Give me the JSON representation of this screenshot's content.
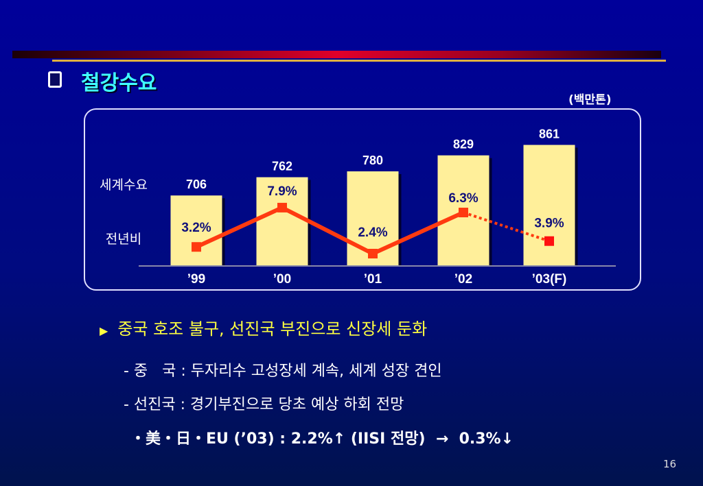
{
  "slide": {
    "title": "철강수요",
    "unit": "(백만톤)",
    "row_label_demand": "세계수요",
    "row_label_yoy": "전년비",
    "bullet": "중국 호조 불구, 선진국 부진으로 신장세 둔화",
    "sub1": "- 중   국 : 두자리수 고성장세 계속, 세계 성장 견인",
    "sub2": "- 선진국 : 경기부진으로 당초 예상 하회 전망",
    "sub3": "・美・日・EU (’03) : 2.2%↑ (IISI 전망)  →  0.3%↓",
    "page_number": "16"
  },
  "colors": {
    "bar": "#ffef9a",
    "line": "#ff3a10",
    "title": "#40ffff",
    "bullet": "#ffff40",
    "pct_label": "#10107a"
  },
  "chart_data": {
    "type": "bar+line",
    "categories": [
      "’99",
      "’00",
      "’01",
      "’02",
      "’03(F)"
    ],
    "series": [
      {
        "name": "세계수요",
        "type": "bar",
        "values": [
          706,
          762,
          780,
          829,
          861
        ],
        "labels": [
          "706",
          "762",
          "780",
          "829",
          "861"
        ]
      },
      {
        "name": "전년비",
        "type": "line",
        "values": [
          3.2,
          7.9,
          2.4,
          6.3,
          3.9
        ],
        "labels": [
          "3.2%",
          "7.9%",
          "2.4%",
          "6.3%",
          "3.9%"
        ],
        "forecast_from_index": 3
      }
    ]
  }
}
